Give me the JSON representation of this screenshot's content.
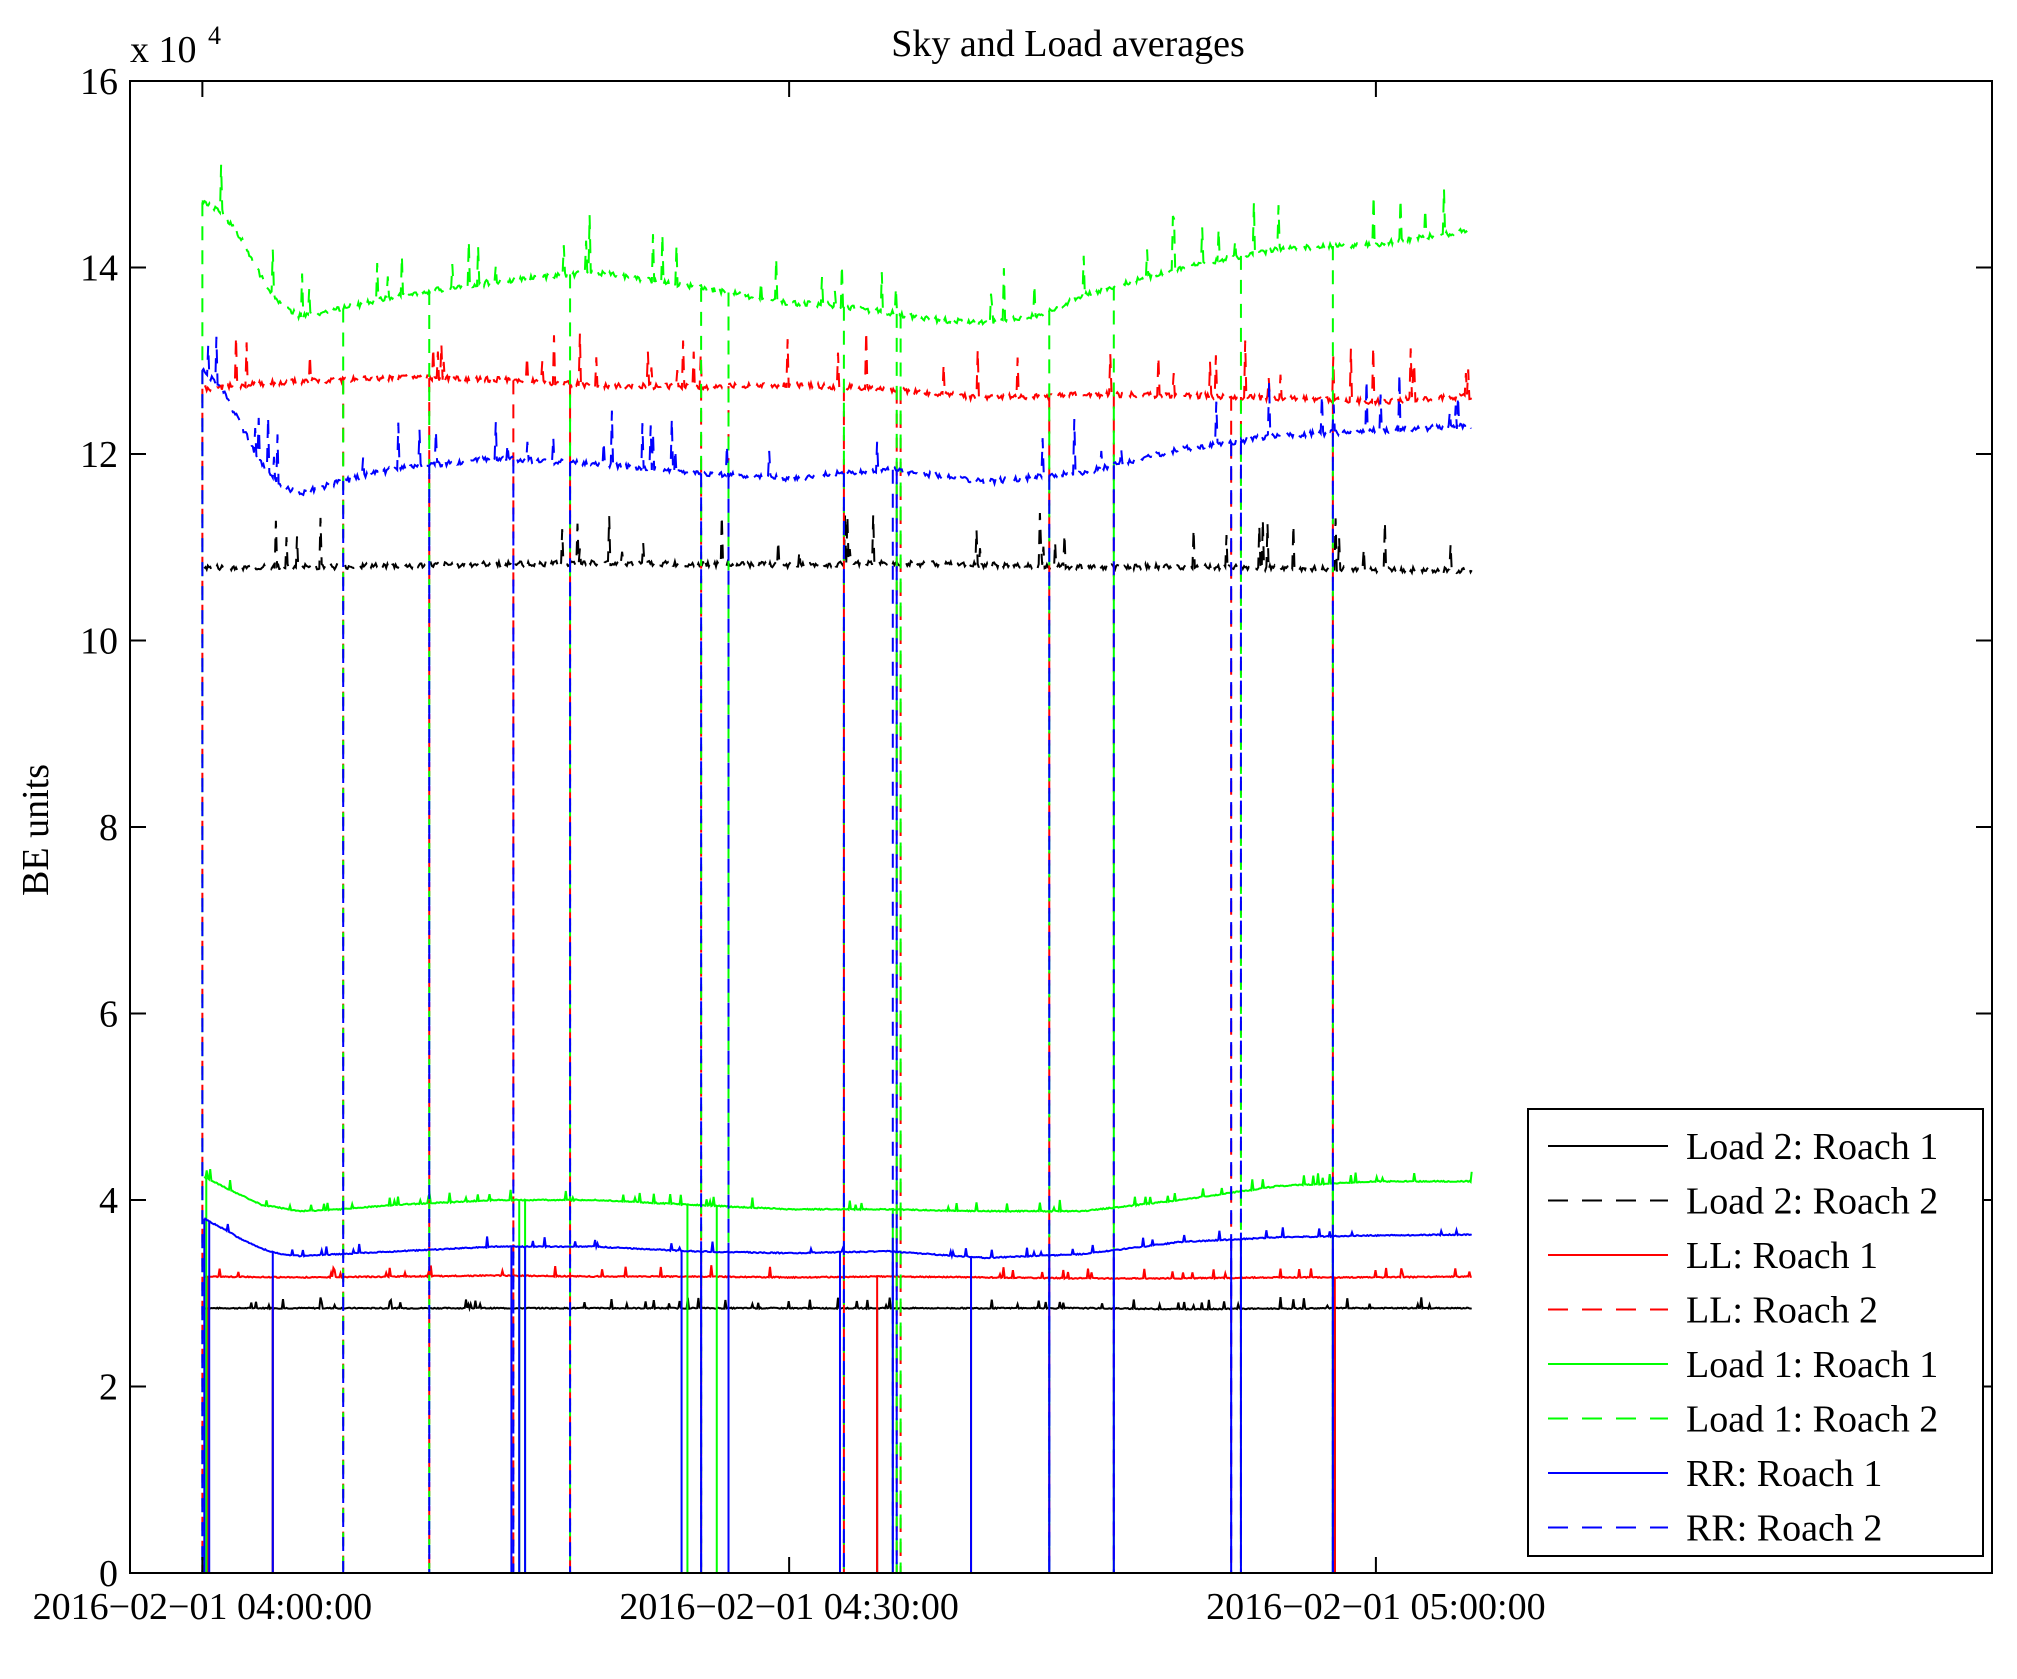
{
  "chart_data": {
    "type": "line",
    "title": "Sky and Load averages",
    "ylabel": "BE units",
    "xlabel": "",
    "y_exponent_label": "x 10",
    "y_exponent_power": "4",
    "x_unit": "minutes since 2016-02-01 04:00:00",
    "xlim": [
      -3.7,
      91.5
    ],
    "ylim": [
      0,
      160000
    ],
    "y_ticks": [
      0,
      20000,
      40000,
      60000,
      80000,
      100000,
      120000,
      140000,
      160000
    ],
    "y_tick_labels": [
      "0",
      "2",
      "4",
      "6",
      "8",
      "10",
      "12",
      "14",
      "16"
    ],
    "x_ticks": [
      0,
      30,
      60
    ],
    "x_tick_labels": [
      "2016−02−01 04:00:00",
      "2016−02−01 04:30:00",
      "2016−02−01 05:00:00"
    ],
    "grid": false,
    "legend_position": "bottom-right",
    "series": [
      {
        "name": "Load 2: Roach 1",
        "color": "#000000",
        "dash": "solid",
        "x": [
          0.1,
          6,
          15,
          30,
          40,
          45,
          50,
          58,
          60,
          64.9
        ],
        "values": [
          28400,
          28400,
          28400,
          28400,
          28400,
          28400,
          28300,
          28400,
          28400,
          28400
        ],
        "dropouts": [
          0.3,
          3.6,
          34.5,
          39.3,
          57.9
        ]
      },
      {
        "name": "Load 2: Roach 2",
        "color": "#000000",
        "dash": "dashed",
        "x": [
          0.1,
          5,
          10,
          15,
          20,
          25,
          30,
          35,
          40,
          45,
          50,
          55,
          60,
          64.9
        ],
        "values": [
          107800,
          107900,
          108000,
          108200,
          108300,
          108200,
          108100,
          108300,
          108100,
          107900,
          107900,
          107800,
          107600,
          107500
        ],
        "dropouts": []
      },
      {
        "name": "LL: Roach 1",
        "color": "#ff0000",
        "dash": "solid",
        "x": [
          0.1,
          5,
          10,
          15,
          20,
          25,
          30,
          35,
          40,
          45,
          50,
          55,
          60,
          64.9
        ],
        "values": [
          31800,
          31700,
          31800,
          31900,
          31800,
          31800,
          31700,
          31800,
          31700,
          31600,
          31600,
          31700,
          31700,
          31800
        ],
        "dropouts": [
          0.3,
          3.6,
          34.5,
          39.3,
          57.9
        ]
      },
      {
        "name": "LL: Roach 2",
        "color": "#ff0000",
        "dash": "dashed",
        "x": [
          0.1,
          2,
          5,
          10,
          15,
          20,
          25,
          30,
          35,
          40,
          45,
          50,
          55,
          60,
          64.9
        ],
        "values": [
          127000,
          127400,
          127800,
          128200,
          128000,
          127400,
          127200,
          127400,
          127000,
          126000,
          126400,
          126300,
          126000,
          125600,
          126200
        ],
        "dropouts": [
          0,
          7.2,
          11.6,
          15.9,
          18.8,
          25.5,
          26.9,
          32.8,
          35.5,
          35.7,
          43.3,
          46.6,
          52.6,
          53.1,
          57.8
        ]
      },
      {
        "name": "Load 1: Roach 1",
        "color": "#00ff00",
        "dash": "solid",
        "x": [
          0.1,
          1,
          3,
          5,
          7,
          10,
          15,
          20,
          25,
          30,
          35,
          40,
          45,
          50,
          55,
          60,
          64.9
        ],
        "values": [
          42500,
          41500,
          39500,
          38800,
          39000,
          39500,
          40000,
          40000,
          39500,
          39000,
          39000,
          38800,
          38800,
          40000,
          41500,
          42000,
          42000
        ],
        "dropouts": [
          0.2,
          16.2,
          16.5,
          24.8,
          26.3,
          35.3,
          57.8
        ]
      },
      {
        "name": "Load 1: Roach 2",
        "color": "#00ff00",
        "dash": "dashed",
        "x": [
          0,
          1,
          2,
          3,
          4,
          5,
          7,
          10,
          15,
          20,
          25,
          30,
          32,
          35,
          37,
          40,
          43,
          45,
          50,
          55,
          60,
          64.9
        ],
        "values": [
          147000,
          146000,
          143000,
          139000,
          136000,
          134800,
          135500,
          137000,
          138500,
          139500,
          138000,
          136200,
          136000,
          135200,
          134500,
          134000,
          135000,
          137000,
          140000,
          142000,
          142500,
          144000
        ],
        "dropouts": [
          0,
          7.2,
          11.6,
          18.8,
          25.5,
          26.9,
          32.8,
          35.5,
          35.7,
          43.3,
          46.6,
          53.1,
          57.8
        ]
      },
      {
        "name": "RR: Roach 1",
        "color": "#0000ff",
        "dash": "solid",
        "x": [
          0.1,
          1,
          2,
          3,
          4,
          5,
          7,
          10,
          15,
          20,
          25,
          30,
          35,
          40,
          45,
          50,
          55,
          60,
          64.9
        ],
        "values": [
          38000,
          37000,
          35800,
          34800,
          34200,
          34000,
          34200,
          34500,
          35000,
          35000,
          34500,
          34300,
          34500,
          33800,
          34200,
          35500,
          36000,
          36200,
          36300
        ],
        "dropouts": [
          0.1,
          0.35,
          3.6,
          15.8,
          16.2,
          16.5,
          24.5,
          25.5,
          26.9,
          32.6,
          35.3,
          39.3,
          43.3,
          46.6,
          52.6,
          53.1,
          57.8
        ]
      },
      {
        "name": "RR: Roach 2",
        "color": "#0000ff",
        "dash": "dashed",
        "x": [
          0,
          1,
          2,
          3,
          4,
          5,
          7,
          10,
          15,
          20,
          25,
          30,
          35,
          40,
          45,
          50,
          55,
          60,
          64.9
        ],
        "values": [
          129000,
          127000,
          123000,
          119000,
          116500,
          115800,
          117000,
          118500,
          119500,
          119000,
          118000,
          117400,
          118400,
          117000,
          118000,
          120500,
          122000,
          122500,
          123000
        ],
        "dropouts": [
          0,
          7.2,
          11.6,
          15.9,
          18.8,
          25.5,
          26.9,
          32.8,
          35.3,
          35.5,
          43.3,
          46.6,
          52.6,
          53.1,
          57.8
        ]
      }
    ]
  }
}
